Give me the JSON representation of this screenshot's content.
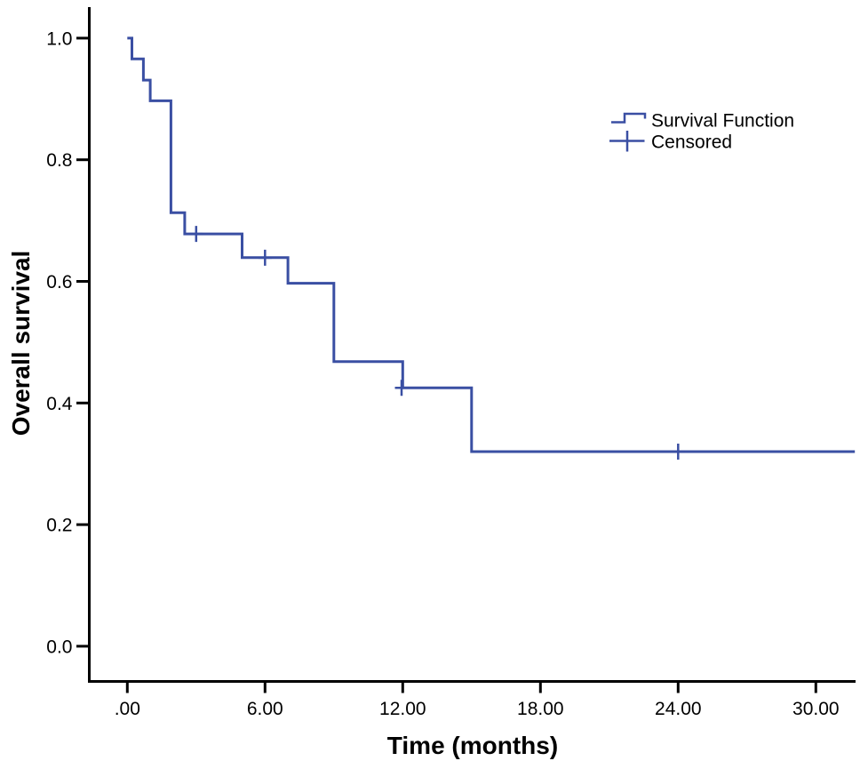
{
  "figure": {
    "background": "#ffffff",
    "axis_color": "#000000",
    "text_color": "#000000"
  },
  "chart_data": {
    "type": "line",
    "subtype": "kaplan-meier-step",
    "title": "",
    "xlabel": "Time (months)",
    "ylabel": "Overall survival",
    "line_color": "#3a4fa3",
    "grid": false,
    "xlim": [
      -1.65,
      31.75
    ],
    "ylim": [
      -0.06,
      1.11
    ],
    "x_ticks": [
      {
        "value": 0,
        "label": ".00"
      },
      {
        "value": 6,
        "label": "6.00"
      },
      {
        "value": 12,
        "label": "12.00"
      },
      {
        "value": 18,
        "label": "18.00"
      },
      {
        "value": 24,
        "label": "24.00"
      },
      {
        "value": 30,
        "label": "30.00"
      }
    ],
    "y_ticks": [
      {
        "value": 0.0,
        "label": "0.0"
      },
      {
        "value": 0.2,
        "label": "0.2"
      },
      {
        "value": 0.4,
        "label": "0.4"
      },
      {
        "value": 0.6,
        "label": "0.6"
      },
      {
        "value": 0.8,
        "label": "0.8"
      },
      {
        "value": 1.0,
        "label": "1.0"
      }
    ],
    "series": [
      {
        "name": "Survival Function",
        "step_points": [
          {
            "t": 0.0,
            "s": 1.0
          },
          {
            "t": 0.2,
            "s": 0.966
          },
          {
            "t": 0.7,
            "s": 0.931
          },
          {
            "t": 1.0,
            "s": 0.897
          },
          {
            "t": 1.9,
            "s": 0.713
          },
          {
            "t": 2.5,
            "s": 0.678
          },
          {
            "t": 5.0,
            "s": 0.639
          },
          {
            "t": 7.0,
            "s": 0.597
          },
          {
            "t": 9.0,
            "s": 0.468
          },
          {
            "t": 12.0,
            "s": 0.425
          },
          {
            "t": 15.0,
            "s": 0.32
          }
        ],
        "end_t": 31.7
      }
    ],
    "censored": [
      {
        "t": 3.0,
        "s": 0.678
      },
      {
        "t": 6.0,
        "s": 0.639
      },
      {
        "t": 11.95,
        "s": 0.425
      },
      {
        "t": 24.0,
        "s": 0.32
      }
    ],
    "legend": {
      "position": "upper-right",
      "items": [
        {
          "label": "Survival Function",
          "symbol": "step-icon"
        },
        {
          "label": "Censored",
          "symbol": "plus-icon"
        }
      ]
    }
  }
}
